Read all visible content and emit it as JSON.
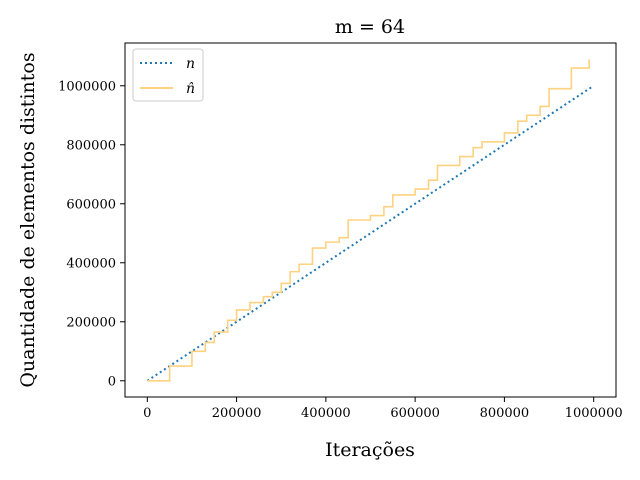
{
  "chart_data": {
    "type": "line",
    "title": "m = 64",
    "xlabel": "Iterações",
    "ylabel": "Quantidade de elementos distintos",
    "xlim": [
      -50000,
      1050000
    ],
    "ylim": [
      -55000,
      1145000
    ],
    "xticks": [
      0,
      200000,
      400000,
      600000,
      800000,
      1000000
    ],
    "yticks": [
      0,
      200000,
      400000,
      600000,
      800000,
      1000000
    ],
    "xtick_labels": [
      "0",
      "200000",
      "400000",
      "600000",
      "800000",
      "1000000"
    ],
    "ytick_labels": [
      "0",
      "200000",
      "400000",
      "600000",
      "800000",
      "1000000"
    ],
    "grid": false,
    "legend_position": "top-left",
    "series": [
      {
        "name": "n",
        "color": "#1f77b4",
        "style": "dotted",
        "x": [
          0,
          1000000
        ],
        "y": [
          0,
          1000000
        ]
      },
      {
        "name": "n̂",
        "color": "#ffd27f",
        "style": "step",
        "x": [
          0,
          50000,
          100000,
          130000,
          150000,
          180000,
          200000,
          230000,
          260000,
          280000,
          300000,
          320000,
          340000,
          370000,
          400000,
          430000,
          450000,
          500000,
          530000,
          550000,
          600000,
          630000,
          650000,
          700000,
          730000,
          750000,
          800000,
          830000,
          850000,
          880000,
          900000,
          950000,
          990000
        ],
        "y": [
          0,
          50000,
          100000,
          130000,
          165000,
          205000,
          240000,
          265000,
          285000,
          300000,
          330000,
          370000,
          395000,
          450000,
          470000,
          485000,
          545000,
          560000,
          590000,
          630000,
          650000,
          680000,
          730000,
          760000,
          790000,
          810000,
          840000,
          880000,
          900000,
          930000,
          990000,
          1060000,
          1090000
        ]
      }
    ]
  }
}
